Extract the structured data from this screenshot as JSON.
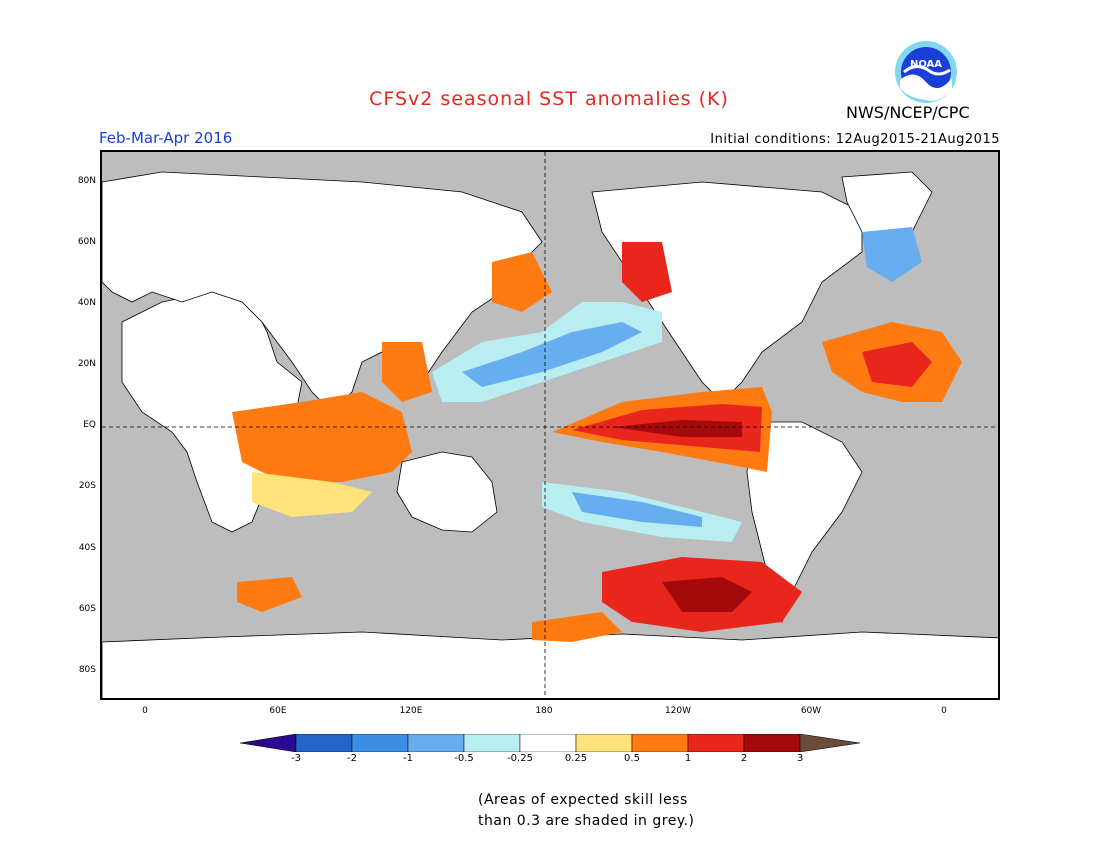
{
  "title": "CFSv2 seasonal SST anomalies (K)",
  "agency": "NWS/NCEP/CPC",
  "logo_text": "NOAA",
  "period": "Feb-Mar-Apr 2016",
  "initial_conditions": "Initial conditions: 12Aug2015-21Aug2015",
  "lat_labels": [
    "80N",
    "60N",
    "40N",
    "20N",
    "EQ",
    "20S",
    "40S",
    "60S",
    "80S"
  ],
  "lon_labels": [
    "0",
    "60E",
    "120E",
    "180",
    "120W",
    "60W",
    "0"
  ],
  "colorbar": {
    "ticks": [
      "-3",
      "-2",
      "-1",
      "-0.5",
      "-0.25",
      "0.25",
      "0.5",
      "1",
      "2",
      "3"
    ],
    "colors": [
      "#2a0b8f",
      "#2266cc",
      "#3b8ee8",
      "#66aef0",
      "#b8eef2",
      "#ffffff",
      "#fde37a",
      "#ff7a10",
      "#e8261c",
      "#a50a0a",
      "#6b4a3a"
    ]
  },
  "note": [
    "(Areas of expected skill less",
    "than 0.3 are shaded in grey.)"
  ],
  "colors": {
    "title": "#e8261c",
    "period": "#1a3fd6",
    "grey_mask": "#bdbdbd",
    "land": "#ffffff"
  }
}
